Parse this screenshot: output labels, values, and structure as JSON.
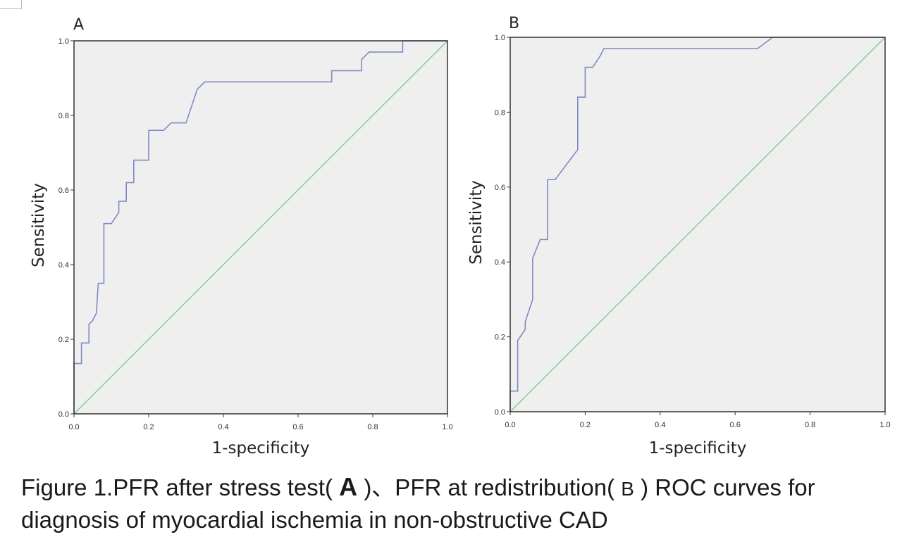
{
  "chart_data": [
    {
      "panel": "A",
      "type": "line",
      "xlabel": "1-specificity",
      "ylabel": "Sensitivity",
      "xlim": [
        0,
        1
      ],
      "ylim": [
        0,
        1
      ],
      "xticks": [
        "0.0",
        "0.2",
        "0.4",
        "0.6",
        "0.8",
        "1.0"
      ],
      "yticks": [
        "0.0",
        "0.2",
        "0.4",
        "0.6",
        "0.8",
        "1.0"
      ],
      "grid": false,
      "series": [
        {
          "role": "roc",
          "color": "#7f8bc2",
          "points": [
            [
              0,
              0
            ],
            [
              0,
              0.135
            ],
            [
              0.02,
              0.135
            ],
            [
              0.02,
              0.19
            ],
            [
              0.04,
              0.19
            ],
            [
              0.04,
              0.24
            ],
            [
              0.05,
              0.25
            ],
            [
              0.06,
              0.27
            ],
            [
              0.065,
              0.35
            ],
            [
              0.08,
              0.35
            ],
            [
              0.08,
              0.51
            ],
            [
              0.1,
              0.51
            ],
            [
              0.12,
              0.54
            ],
            [
              0.12,
              0.57
            ],
            [
              0.14,
              0.57
            ],
            [
              0.14,
              0.62
            ],
            [
              0.16,
              0.62
            ],
            [
              0.16,
              0.68
            ],
            [
              0.2,
              0.68
            ],
            [
              0.2,
              0.76
            ],
            [
              0.24,
              0.76
            ],
            [
              0.26,
              0.78
            ],
            [
              0.3,
              0.78
            ],
            [
              0.32,
              0.84
            ],
            [
              0.33,
              0.87
            ],
            [
              0.35,
              0.89
            ],
            [
              0.69,
              0.89
            ],
            [
              0.69,
              0.92
            ],
            [
              0.77,
              0.92
            ],
            [
              0.77,
              0.95
            ],
            [
              0.79,
              0.97
            ],
            [
              0.88,
              0.97
            ],
            [
              0.88,
              1.0
            ],
            [
              1.0,
              1.0
            ]
          ]
        },
        {
          "role": "reference",
          "color": "#7fc77f",
          "points": [
            [
              0,
              0
            ],
            [
              1,
              1
            ]
          ]
        }
      ]
    },
    {
      "panel": "B",
      "type": "line",
      "xlabel": "1-specificity",
      "ylabel": "Sensitivity",
      "xlim": [
        0,
        1
      ],
      "ylim": [
        0,
        1
      ],
      "xticks": [
        "0.0",
        "0.2",
        "0.4",
        "0.6",
        "0.8",
        "1.0"
      ],
      "yticks": [
        "0.0",
        "0.2",
        "0.4",
        "0.6",
        "0.8",
        "1.0"
      ],
      "grid": false,
      "series": [
        {
          "role": "roc",
          "color": "#7f8bc2",
          "points": [
            [
              0,
              0
            ],
            [
              0,
              0.055
            ],
            [
              0.02,
              0.055
            ],
            [
              0.02,
              0.19
            ],
            [
              0.04,
              0.22
            ],
            [
              0.04,
              0.24
            ],
            [
              0.06,
              0.3
            ],
            [
              0.06,
              0.41
            ],
            [
              0.08,
              0.46
            ],
            [
              0.1,
              0.46
            ],
            [
              0.1,
              0.62
            ],
            [
              0.12,
              0.62
            ],
            [
              0.18,
              0.7
            ],
            [
              0.18,
              0.84
            ],
            [
              0.2,
              0.84
            ],
            [
              0.2,
              0.92
            ],
            [
              0.22,
              0.92
            ],
            [
              0.24,
              0.95
            ],
            [
              0.25,
              0.97
            ],
            [
              0.66,
              0.97
            ],
            [
              0.7,
              1.0
            ],
            [
              1.0,
              1.0
            ]
          ]
        },
        {
          "role": "reference",
          "color": "#7fc77f",
          "points": [
            [
              0,
              0
            ],
            [
              1,
              1
            ]
          ]
        }
      ]
    }
  ],
  "caption": {
    "part1": "Figure 1.PFR after stress test(",
    "label_a": "A",
    "part2": ")、PFR at redistribution(",
    "label_b": "B",
    "part3": ") ROC curves for",
    "line2": "diagnosis of myocardial ischemia in non-obstructive CAD"
  },
  "colors": {
    "plot_bg": "#efefef",
    "frame": "#333333",
    "roc": "#7f8bc2",
    "reference": "#7fc77f"
  }
}
